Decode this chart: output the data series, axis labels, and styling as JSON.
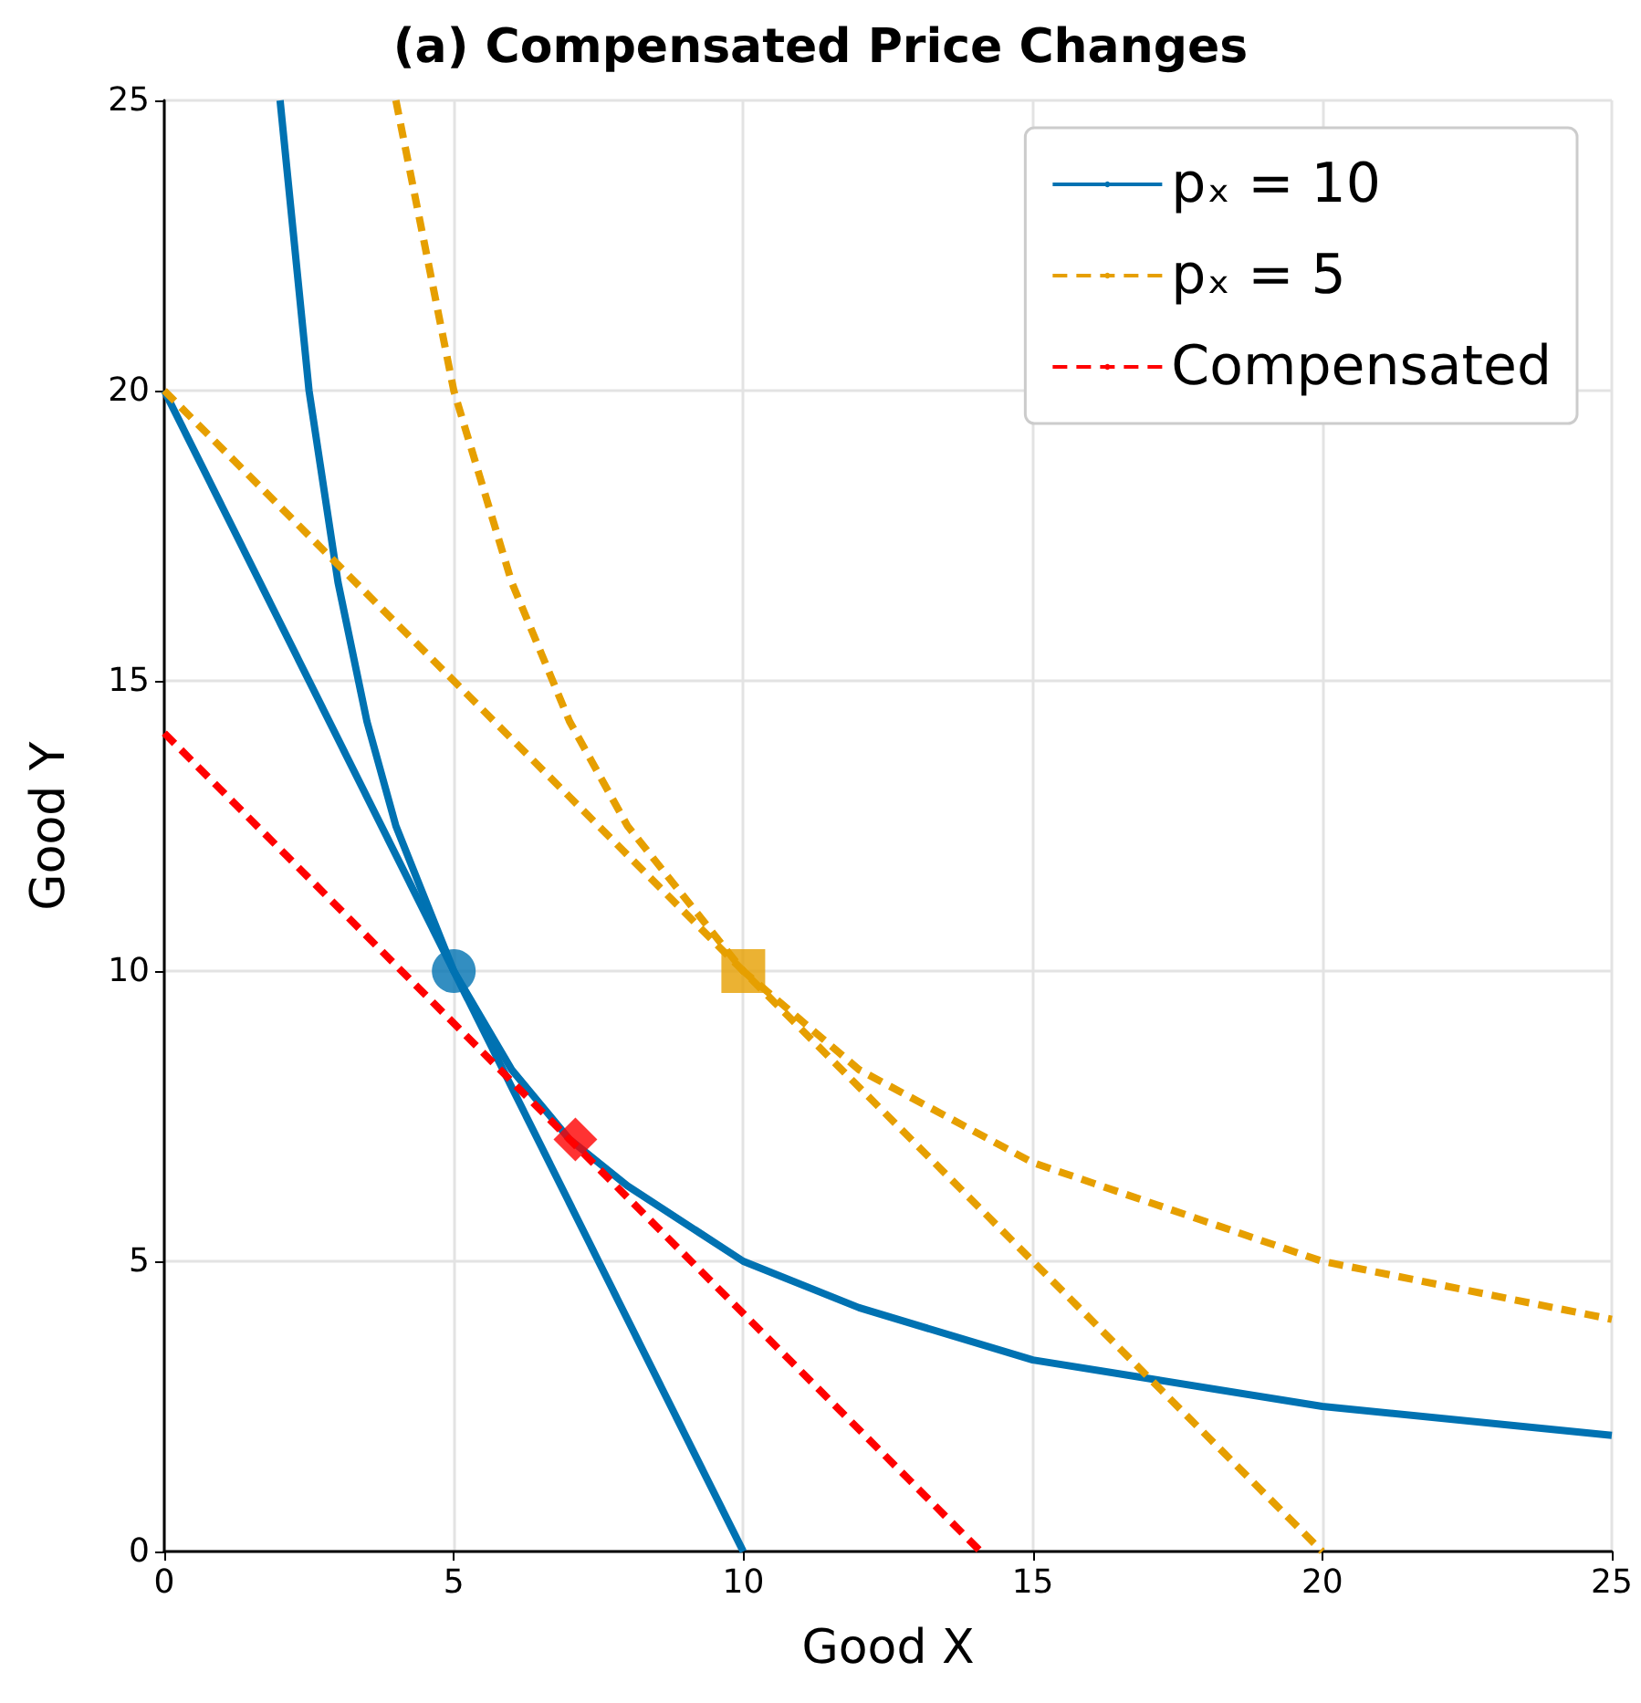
{
  "chart_data": {
    "type": "line",
    "title": "(a) Compensated Price Changes",
    "xlabel": "Good X",
    "ylabel": "Good Y",
    "xlim": [
      0,
      25
    ],
    "ylim": [
      0,
      25
    ],
    "xticks": [
      0,
      5,
      10,
      15,
      20,
      25
    ],
    "yticks": [
      0,
      5,
      10,
      15,
      20,
      25
    ],
    "grid": true,
    "legend": "top right",
    "series": [
      {
        "name": "pₓ = 10",
        "color": "#0072b2",
        "line_style": "solid",
        "marker": "none",
        "x": [
          0,
          10
        ],
        "values": [
          20,
          0
        ]
      },
      {
        "color": "#0072b2",
        "line_style": "solid",
        "marker": "none",
        "x": [
          2,
          2.5,
          3,
          3.5,
          4,
          5,
          6,
          7,
          8,
          10,
          12,
          15,
          20,
          25
        ],
        "values": [
          25,
          20,
          16.7,
          14.3,
          12.5,
          10,
          8.3,
          7.1,
          6.3,
          5,
          4.2,
          3.3,
          2.5,
          2
        ]
      },
      {
        "name": "pₓ = 5",
        "color": "#e69f00",
        "line_style": "dashed",
        "marker": "none",
        "x": [
          0,
          20
        ],
        "values": [
          20,
          0
        ]
      },
      {
        "color": "#e69f00",
        "line_style": "dashed",
        "marker": "none",
        "x": [
          4,
          5,
          6,
          7,
          8,
          10,
          12,
          15,
          20,
          25
        ],
        "values": [
          25,
          20,
          16.7,
          14.3,
          12.5,
          10,
          8.3,
          6.7,
          5,
          4
        ]
      },
      {
        "name": "Compensated",
        "color": "#ff0000",
        "line_style": "dashed",
        "marker": "none",
        "x": [
          0,
          14.1
        ],
        "values": [
          14.1,
          0
        ]
      },
      {
        "type": "scatter",
        "color": "#0072b2",
        "marker": "circle",
        "x": [
          5
        ],
        "values": [
          10
        ]
      },
      {
        "type": "scatter",
        "color": "#e69f00",
        "marker": "square",
        "x": [
          10
        ],
        "values": [
          10
        ]
      },
      {
        "type": "scatter",
        "color": "#ff0000",
        "marker": "diamond",
        "x": [
          7.1
        ],
        "values": [
          7.1
        ]
      }
    ]
  }
}
